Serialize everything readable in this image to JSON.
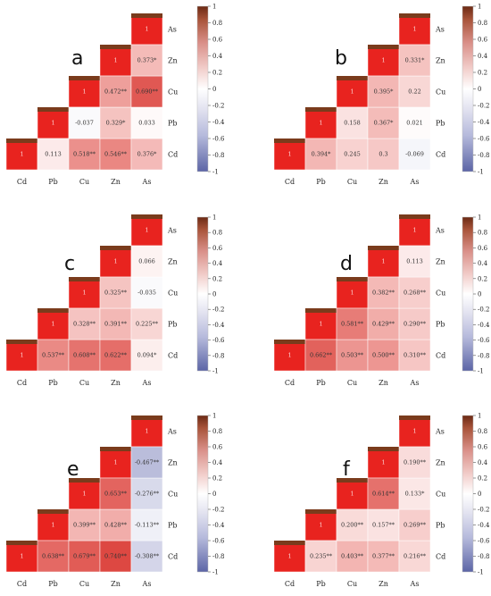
{
  "chart_data": [
    {
      "type": "heatmap",
      "panel": "a",
      "variables": [
        "Cd",
        "Pb",
        "Cu",
        "Zn",
        "As"
      ],
      "diagonal_label": "1",
      "cells": [
        {
          "row": "Cd",
          "col": "Pb",
          "value": 0.113,
          "label": "0.113"
        },
        {
          "row": "Cd",
          "col": "Cu",
          "value": 0.518,
          "label": "0.518**"
        },
        {
          "row": "Cd",
          "col": "Zn",
          "value": 0.546,
          "label": "0.546**"
        },
        {
          "row": "Cd",
          "col": "As",
          "value": 0.376,
          "label": "0.376*"
        },
        {
          "row": "Pb",
          "col": "Cu",
          "value": -0.037,
          "label": "-0.037"
        },
        {
          "row": "Pb",
          "col": "Zn",
          "value": 0.329,
          "label": "0.329*"
        },
        {
          "row": "Pb",
          "col": "As",
          "value": 0.033,
          "label": "0.033"
        },
        {
          "row": "Cu",
          "col": "Zn",
          "value": 0.472,
          "label": "0.472**"
        },
        {
          "row": "Cu",
          "col": "As",
          "value": 0.69,
          "label": "0.690**"
        },
        {
          "row": "Zn",
          "col": "As",
          "value": 0.373,
          "label": "0.373*"
        }
      ],
      "colorbar": {
        "range": [
          -1,
          1
        ],
        "ticks": [
          "1",
          "0.8",
          "0.6",
          "0.4",
          "0.2",
          "0",
          "-0.2",
          "-0.4",
          "-0.6",
          "-0.8",
          "-1"
        ]
      }
    },
    {
      "type": "heatmap",
      "panel": "b",
      "variables": [
        "Cd",
        "Pb",
        "Cu",
        "Zn",
        "As"
      ],
      "diagonal_label": "1",
      "cells": [
        {
          "row": "Cd",
          "col": "Pb",
          "value": 0.394,
          "label": "0.394*"
        },
        {
          "row": "Cd",
          "col": "Cu",
          "value": 0.245,
          "label": "0.245"
        },
        {
          "row": "Cd",
          "col": "Zn",
          "value": 0.3,
          "label": "0.3"
        },
        {
          "row": "Cd",
          "col": "As",
          "value": -0.069,
          "label": "-0.069"
        },
        {
          "row": "Pb",
          "col": "Cu",
          "value": 0.158,
          "label": "0.158"
        },
        {
          "row": "Pb",
          "col": "Zn",
          "value": 0.367,
          "label": "0.367*"
        },
        {
          "row": "Pb",
          "col": "As",
          "value": 0.021,
          "label": "0.021"
        },
        {
          "row": "Cu",
          "col": "Zn",
          "value": 0.395,
          "label": "0.395*"
        },
        {
          "row": "Cu",
          "col": "As",
          "value": 0.22,
          "label": "0.22"
        },
        {
          "row": "Zn",
          "col": "As",
          "value": 0.331,
          "label": "0.331*"
        }
      ],
      "colorbar": {
        "range": [
          -1,
          1
        ],
        "ticks": [
          "1",
          "0.8",
          "0.6",
          "0.4",
          "0.2",
          "0",
          "-0.2",
          "-0.4",
          "-0.6",
          "-0.8",
          "-1"
        ]
      }
    },
    {
      "type": "heatmap",
      "panel": "c",
      "variables": [
        "Cd",
        "Pb",
        "Cu",
        "Zn",
        "As"
      ],
      "diagonal_label": "1",
      "cells": [
        {
          "row": "Cd",
          "col": "Pb",
          "value": 0.537,
          "label": "0.537**"
        },
        {
          "row": "Cd",
          "col": "Cu",
          "value": 0.608,
          "label": "0.608**"
        },
        {
          "row": "Cd",
          "col": "Zn",
          "value": 0.622,
          "label": "0.622**"
        },
        {
          "row": "Cd",
          "col": "As",
          "value": 0.094,
          "label": "0.094*"
        },
        {
          "row": "Pb",
          "col": "Cu",
          "value": 0.328,
          "label": "0.328**"
        },
        {
          "row": "Pb",
          "col": "Zn",
          "value": 0.391,
          "label": "0.391**"
        },
        {
          "row": "Pb",
          "col": "As",
          "value": 0.225,
          "label": "0.225**"
        },
        {
          "row": "Cu",
          "col": "Zn",
          "value": 0.325,
          "label": "0.325**"
        },
        {
          "row": "Cu",
          "col": "As",
          "value": -0.035,
          "label": "-0.035"
        },
        {
          "row": "Zn",
          "col": "As",
          "value": 0.066,
          "label": "0.066"
        }
      ],
      "colorbar": {
        "range": [
          -1,
          1
        ],
        "ticks": [
          "1",
          "0.8",
          "0.6",
          "0.4",
          "0.2",
          "0",
          "-0.2",
          "-0.4",
          "-0.6",
          "-0.8",
          "-1"
        ]
      }
    },
    {
      "type": "heatmap",
      "panel": "d",
      "variables": [
        "Cd",
        "Pb",
        "Cu",
        "Zn",
        "As"
      ],
      "diagonal_label": "1",
      "cells": [
        {
          "row": "Cd",
          "col": "Pb",
          "value": 0.662,
          "label": "0.662**"
        },
        {
          "row": "Cd",
          "col": "Cu",
          "value": 0.503,
          "label": "0.503**"
        },
        {
          "row": "Cd",
          "col": "Zn",
          "value": 0.5,
          "label": "0.500**"
        },
        {
          "row": "Cd",
          "col": "As",
          "value": 0.31,
          "label": "0.310**"
        },
        {
          "row": "Pb",
          "col": "Cu",
          "value": 0.581,
          "label": "0.581**"
        },
        {
          "row": "Pb",
          "col": "Zn",
          "value": 0.429,
          "label": "0.429**"
        },
        {
          "row": "Pb",
          "col": "As",
          "value": 0.29,
          "label": "0.290**"
        },
        {
          "row": "Cu",
          "col": "Zn",
          "value": 0.382,
          "label": "0.382**"
        },
        {
          "row": "Cu",
          "col": "As",
          "value": 0.268,
          "label": "0.268**"
        },
        {
          "row": "Zn",
          "col": "As",
          "value": 0.113,
          "label": "0.113"
        }
      ],
      "colorbar": {
        "range": [
          -1,
          1
        ],
        "ticks": [
          "1",
          "0.8",
          "0.6",
          "0.4",
          "0.2",
          "0",
          "-0.2",
          "-0.4",
          "-0.6",
          "-0.8",
          "-1"
        ]
      }
    },
    {
      "type": "heatmap",
      "panel": "e",
      "variables": [
        "Cd",
        "Pb",
        "Cu",
        "Zn",
        "As"
      ],
      "diagonal_label": "1",
      "cells": [
        {
          "row": "Cd",
          "col": "Pb",
          "value": 0.638,
          "label": "0.638**"
        },
        {
          "row": "Cd",
          "col": "Cu",
          "value": 0.679,
          "label": "0.679**"
        },
        {
          "row": "Cd",
          "col": "Zn",
          "value": 0.74,
          "label": "0.740**"
        },
        {
          "row": "Cd",
          "col": "As",
          "value": -0.308,
          "label": "-0.308**"
        },
        {
          "row": "Pb",
          "col": "Cu",
          "value": 0.399,
          "label": "0.399**"
        },
        {
          "row": "Pb",
          "col": "Zn",
          "value": 0.428,
          "label": "0.428**"
        },
        {
          "row": "Pb",
          "col": "As",
          "value": -0.113,
          "label": "-0.113**"
        },
        {
          "row": "Cu",
          "col": "Zn",
          "value": 0.653,
          "label": "0.653**"
        },
        {
          "row": "Cu",
          "col": "As",
          "value": -0.276,
          "label": "-0.276**"
        },
        {
          "row": "Zn",
          "col": "As",
          "value": -0.467,
          "label": "-0.467**"
        }
      ],
      "colorbar": {
        "range": [
          -1,
          1
        ],
        "ticks": [
          "1",
          "0.8",
          "0.6",
          "0.4",
          "0.2",
          "0",
          "-0.2",
          "-0.4",
          "-0.6",
          "-0.8",
          "-1"
        ]
      }
    },
    {
      "type": "heatmap",
      "panel": "f",
      "variables": [
        "Cd",
        "Pb",
        "Cu",
        "Zn",
        "As"
      ],
      "diagonal_label": "1",
      "cells": [
        {
          "row": "Cd",
          "col": "Pb",
          "value": 0.235,
          "label": "0.235**"
        },
        {
          "row": "Cd",
          "col": "Cu",
          "value": 0.403,
          "label": "0.403**"
        },
        {
          "row": "Cd",
          "col": "Zn",
          "value": 0.377,
          "label": "0.377**"
        },
        {
          "row": "Cd",
          "col": "As",
          "value": 0.216,
          "label": "0.216**"
        },
        {
          "row": "Pb",
          "col": "Cu",
          "value": 0.2,
          "label": "0.200**"
        },
        {
          "row": "Pb",
          "col": "Zn",
          "value": 0.157,
          "label": "0.157**"
        },
        {
          "row": "Pb",
          "col": "As",
          "value": 0.269,
          "label": "0.269**"
        },
        {
          "row": "Cu",
          "col": "Zn",
          "value": 0.614,
          "label": "0.614**"
        },
        {
          "row": "Cu",
          "col": "As",
          "value": 0.133,
          "label": "0.133*"
        },
        {
          "row": "Zn",
          "col": "As",
          "value": 0.19,
          "label": "0.190**"
        }
      ],
      "colorbar": {
        "range": [
          -1,
          1
        ],
        "ticks": [
          "1",
          "0.8",
          "0.6",
          "0.4",
          "0.2",
          "0",
          "-0.2",
          "-0.4",
          "-0.6",
          "-0.8",
          "-1"
        ]
      }
    }
  ],
  "colors": {
    "diagonal_fill": "#e8231f",
    "diagonal_top": "#7a3b1c",
    "positive_high": "#d9352e",
    "positive_mid": "#f3b6b3",
    "neutral": "#ffffff",
    "negative_mid": "#c7c9e2",
    "negative_high": "#6670ad",
    "colorbar_top": "#6b2a14",
    "colorbar_bottom": "#5c65a6"
  }
}
